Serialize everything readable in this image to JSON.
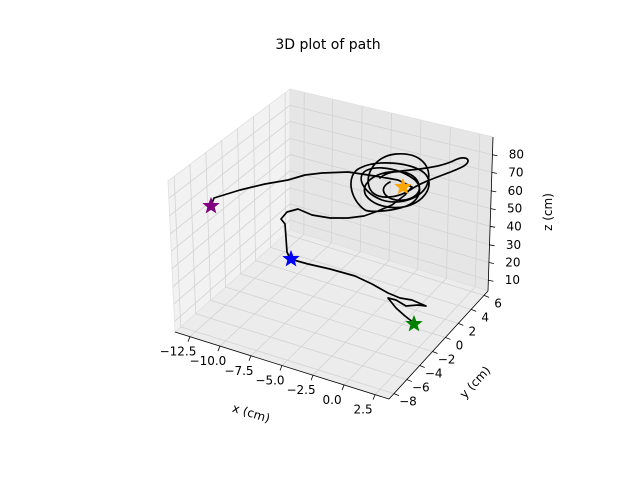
{
  "chart_data": {
    "type": "line3d",
    "title": "3D plot of path",
    "xlabel": "x (cm)",
    "ylabel": "y (cm)",
    "zlabel": "z (cm)",
    "x_ticks": [
      "−12.5",
      "−10.0",
      "−7.5",
      "−5.0",
      "−2.5",
      "0.0",
      "2.5"
    ],
    "y_ticks": [
      "−8",
      "−6",
      "−4",
      "−2",
      "0",
      "2",
      "4",
      "6"
    ],
    "z_ticks": [
      "10",
      "20",
      "30",
      "40",
      "50",
      "60",
      "70",
      "80"
    ],
    "grid": true,
    "path_color": "#000000",
    "markers": [
      {
        "name": "purple",
        "color": "#800080"
      },
      {
        "name": "blue",
        "color": "#0000ff"
      },
      {
        "name": "orange",
        "color": "#ffa500"
      },
      {
        "name": "green",
        "color": "#008000"
      }
    ]
  }
}
